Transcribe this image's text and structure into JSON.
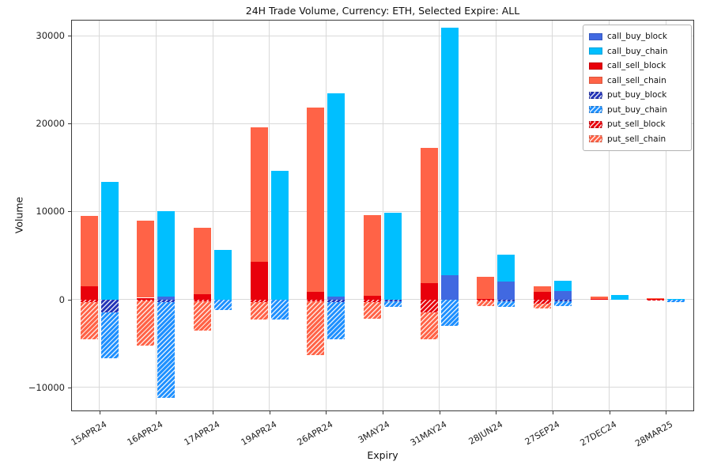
{
  "chart_data": {
    "type": "bar",
    "title": "24H Trade Volume, Currency: ETH, Selected Expire: ALL",
    "xlabel": "Expiry",
    "ylabel": "Volume",
    "ylim": [
      -12700,
      31800
    ],
    "grid": true,
    "legend_position": "upper right",
    "categories": [
      "15APR24",
      "16APR24",
      "17APR24",
      "19APR24",
      "26APR24",
      "3MAY24",
      "31MAY24",
      "28JUN24",
      "27SEP24",
      "27DEC24",
      "28MAR25"
    ],
    "yticks": {
      "values": [
        30000,
        20000,
        10000,
        0,
        -10000
      ],
      "labels": [
        "30000",
        "20000",
        "10000",
        "0",
        "−10000"
      ]
    },
    "legend": [
      {
        "label": "call_buy_block",
        "color": "#4169E1",
        "hatch": false
      },
      {
        "label": "call_buy_chain",
        "color": "#00BFFF",
        "hatch": false
      },
      {
        "label": "call_sell_block",
        "color": "#E8000B",
        "hatch": false
      },
      {
        "label": "call_sell_chain",
        "color": "#FF6347",
        "hatch": false
      },
      {
        "label": "put_buy_block",
        "color": "#2434B8",
        "hatch": true
      },
      {
        "label": "put_buy_chain",
        "color": "#1E90FF",
        "hatch": true
      },
      {
        "label": "put_sell_block",
        "color": "#E8000B",
        "hatch": true
      },
      {
        "label": "put_sell_chain",
        "color": "#FF6347",
        "hatch": true
      }
    ],
    "series": {
      "call_sell_block": [
        1500,
        200,
        600,
        4300,
        900,
        400,
        1900,
        100,
        900,
        100,
        100
      ],
      "call_sell_chain": [
        8000,
        8800,
        7600,
        15300,
        20900,
        9200,
        15300,
        2500,
        600,
        200,
        100
      ],
      "put_sell_block": [
        -300,
        -100,
        -200,
        -300,
        -200,
        -300,
        -1500,
        -100,
        -500,
        0,
        -100
      ],
      "put_sell_chain": [
        -4200,
        -5100,
        -3300,
        -2000,
        -6100,
        -1900,
        -3000,
        -600,
        -500,
        0,
        0
      ],
      "call_buy_block": [
        0,
        300,
        0,
        0,
        300,
        0,
        2800,
        2000,
        1000,
        0,
        0
      ],
      "call_buy_chain": [
        13400,
        9700,
        5600,
        14600,
        23100,
        9900,
        28100,
        3100,
        1100,
        500,
        100
      ],
      "put_buy_block": [
        -1500,
        -300,
        0,
        0,
        -300,
        -200,
        0,
        -200,
        -200,
        0,
        0
      ],
      "put_buy_chain": [
        -5200,
        -10900,
        -1200,
        -2300,
        -4200,
        -600,
        -3000,
        -600,
        -500,
        0,
        -300
      ]
    },
    "bar_stacks": {
      "sell": {
        "pos": [
          "call_sell_block",
          "call_sell_chain"
        ],
        "neg": [
          "put_sell_block",
          "put_sell_chain"
        ]
      },
      "buy": {
        "pos": [
          "call_buy_block",
          "call_buy_chain"
        ],
        "neg": [
          "put_buy_block",
          "put_buy_chain"
        ]
      }
    }
  }
}
